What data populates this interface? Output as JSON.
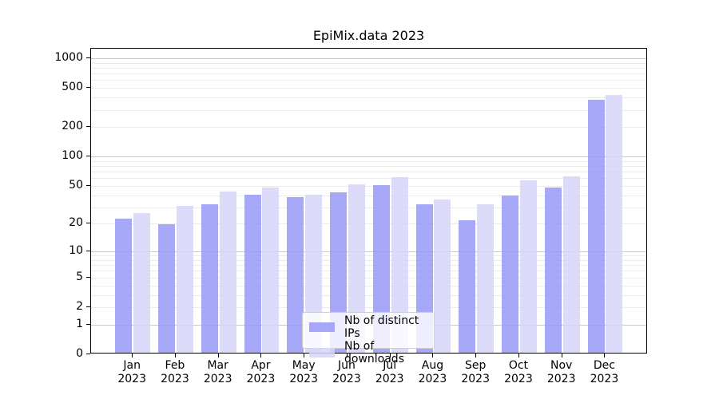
{
  "chart_data": {
    "type": "bar",
    "title": "EpiMix.data 2023",
    "categories": [
      "Jan 2023",
      "Feb 2023",
      "Mar 2023",
      "Apr 2023",
      "May 2023",
      "Jun 2023",
      "Jul 2023",
      "Aug 2023",
      "Sep 2023",
      "Oct 2023",
      "Nov 2023",
      "Dec 2023"
    ],
    "series": [
      {
        "name": "Nb of distinct IPs",
        "fill": "#9999f7",
        "opacity": 0.85,
        "values": [
          22,
          19,
          31,
          39,
          37,
          41,
          49,
          31,
          21,
          38,
          46,
          365
        ]
      },
      {
        "name": "Nb of downloads",
        "fill": "#d6d6f9",
        "opacity": 0.85,
        "values": [
          25,
          30,
          42,
          46,
          39,
          50,
          59,
          35,
          31,
          55,
          60,
          410
        ]
      }
    ],
    "yscale": "symlog",
    "ylim": [
      0,
      1250
    ],
    "y_tick_values": [
      1000,
      500,
      200,
      100,
      50,
      20,
      10,
      5,
      2,
      1,
      0
    ],
    "y_major_gridlines": [
      1,
      10,
      100,
      1000
    ],
    "grid": {
      "major_color": "#c9c9c9",
      "minor_color": "#ebebeb"
    },
    "colors": {
      "axis": "#000000",
      "background": "#ffffff"
    },
    "legend_position": "bottom-center"
  }
}
